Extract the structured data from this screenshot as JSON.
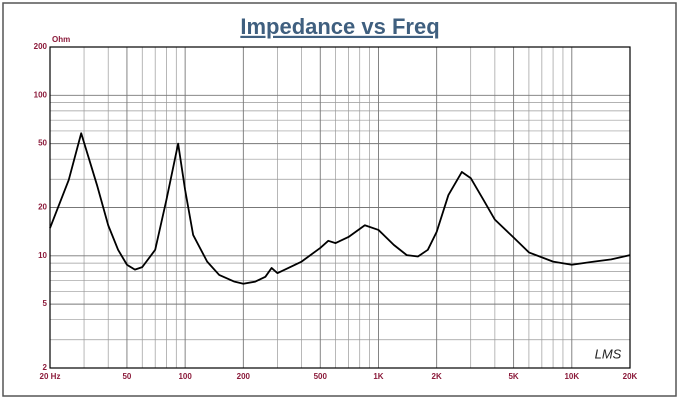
{
  "chart_data": {
    "type": "line",
    "title": "Impedance vs Freq",
    "y_unit": "Ohm",
    "annotation": "LMS",
    "x_log": true,
    "y_log": true,
    "grid": true,
    "xlim": [
      20,
      20000
    ],
    "ylim": [
      2,
      200
    ],
    "xticks": [
      {
        "value": 20,
        "label": "20 Hz"
      },
      50,
      100,
      200,
      500,
      {
        "value": 1000,
        "label": "1K"
      },
      {
        "value": 2000,
        "label": "2K"
      },
      {
        "value": 5000,
        "label": "5K"
      },
      {
        "value": 10000,
        "label": "10K"
      },
      {
        "value": 20000,
        "label": "20K"
      }
    ],
    "x_minor_ticks": [
      30,
      40,
      60,
      70,
      80,
      90,
      300,
      400,
      600,
      700,
      800,
      900,
      3000,
      4000,
      6000,
      7000,
      8000,
      9000
    ],
    "yticks": [
      2,
      5,
      10,
      20,
      50,
      100,
      200
    ],
    "y_minor_ticks": [
      3,
      4,
      6,
      7,
      8,
      9,
      30,
      40,
      60,
      70,
      80,
      90
    ],
    "x": [
      20,
      25,
      29,
      35,
      40,
      45,
      50,
      55,
      60,
      70,
      80,
      92,
      100,
      110,
      130,
      150,
      180,
      200,
      230,
      260,
      280,
      300,
      400,
      500,
      550,
      600,
      700,
      850,
      1000,
      1200,
      1400,
      1600,
      1800,
      2000,
      2300,
      2700,
      3000,
      3500,
      4000,
      5000,
      6000,
      8000,
      10000,
      13000,
      16000,
      20000
    ],
    "series": [
      {
        "color": "#000000",
        "values": [
          14.9,
          29.7,
          58,
          27.6,
          15.5,
          10.9,
          8.8,
          8.2,
          8.5,
          10.9,
          22.3,
          50,
          25.7,
          13.5,
          9.2,
          7.6,
          6.9,
          6.7,
          6.9,
          7.4,
          8.4,
          7.8,
          9.2,
          11.2,
          12.4,
          12.0,
          13.1,
          15.5,
          14.5,
          11.7,
          10.1,
          9.9,
          10.9,
          14.1,
          23.9,
          33.3,
          30.5,
          22.2,
          16.8,
          13.0,
          10.5,
          9.2,
          8.8,
          9.2,
          9.5,
          10.1
        ]
      }
    ]
  }
}
